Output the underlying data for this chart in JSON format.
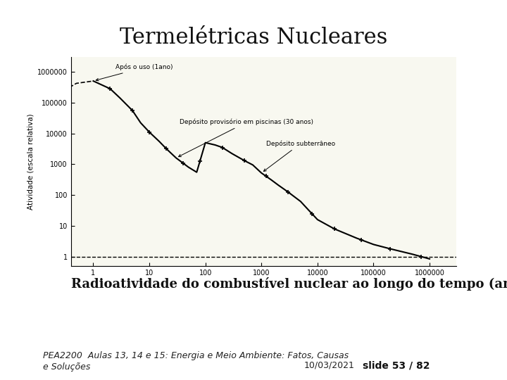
{
  "title": "Termelétricas Nucleares",
  "subtitle": "Radioatividade do combustível nuclear ao longo do tempo (anos).",
  "footer_left": "PEA2200  Aulas 13, 14 e 15: Energia e Meio Ambiente: Fatos, Causas\ne Soluções",
  "footer_date": "10/03/2021",
  "footer_slide": "slide 53 / 82",
  "ylabel": "Atividade (escala relativa)",
  "bg_color": "#ffffff",
  "title_fontsize": 22,
  "subtitle_fontsize": 13,
  "footer_fontsize": 9,
  "slide_fontsize": 10,
  "accent_color": "#d4a017",
  "footer_bg": "#e8e0b0",
  "right_bar_color": "#e0d8a8"
}
